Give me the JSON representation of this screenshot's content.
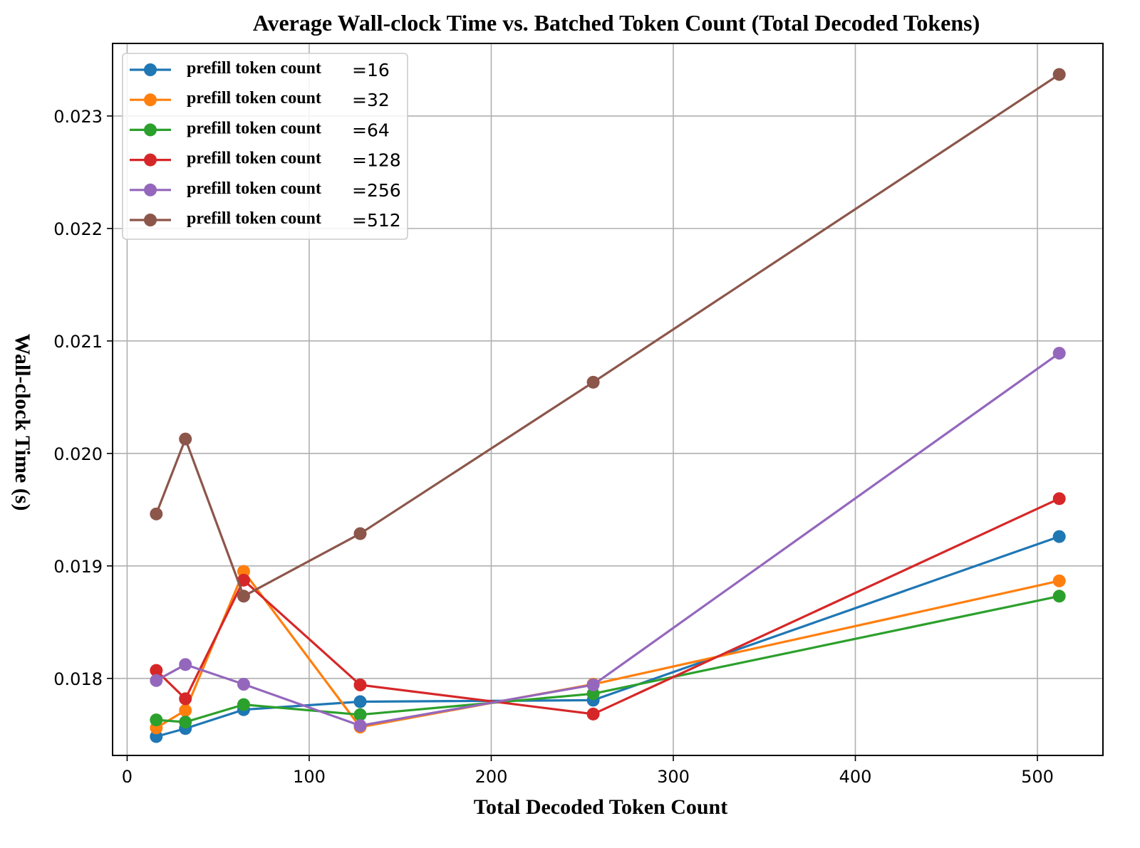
{
  "chart_data": {
    "type": "line",
    "title": "Average Wall-clock Time vs. Batched Token Count (Total Decoded Tokens)",
    "xlabel": "Total Decoded Token Count",
    "ylabel": "Wall-clock Time (s)",
    "xlim": [
      -8,
      536
    ],
    "ylim": [
      0.017315,
      0.023645
    ],
    "xticks": [
      0,
      100,
      200,
      300,
      400,
      500
    ],
    "xtick_labels": [
      "0",
      "100",
      "200",
      "300",
      "400",
      "500"
    ],
    "yticks": [
      0.018,
      0.019,
      0.02,
      0.021,
      0.022,
      0.023
    ],
    "ytick_labels": [
      "0.018",
      "0.019",
      "0.020",
      "0.021",
      "0.022",
      "0.023"
    ],
    "grid": true,
    "legend_position": "top-left",
    "x": [
      16,
      32,
      64,
      128,
      256,
      512
    ],
    "series": [
      {
        "name": "prefill token count =16",
        "label": "prefill token count",
        "suffix": "=16",
        "color": "#1f77b4",
        "values": [
          0.017483,
          0.017554,
          0.017722,
          0.017793,
          0.017806,
          0.019261
        ]
      },
      {
        "name": "prefill token count =32",
        "label": "prefill token count",
        "suffix": "=32",
        "color": "#ff7f0e",
        "values": [
          0.01756,
          0.017715,
          0.018951,
          0.017567,
          0.017948,
          0.018867
        ]
      },
      {
        "name": "prefill token count =64",
        "label": "prefill token count",
        "suffix": "=64",
        "color": "#2ca02c",
        "values": [
          0.017631,
          0.017612,
          0.017767,
          0.017677,
          0.017864,
          0.018731
        ]
      },
      {
        "name": "prefill token count =128",
        "label": "prefill token count",
        "suffix": "=128",
        "color": "#d62728",
        "values": [
          0.018071,
          0.017819,
          0.018873,
          0.017942,
          0.017683,
          0.019598
        ]
      },
      {
        "name": "prefill token count =256",
        "label": "prefill token count",
        "suffix": "=256",
        "color": "#9467bd",
        "values": [
          0.017981,
          0.018123,
          0.017948,
          0.01758,
          0.017942,
          0.020891
        ]
      },
      {
        "name": "prefill token count =512",
        "label": "prefill token count",
        "suffix": "=512",
        "color": "#8c564b",
        "values": [
          0.019462,
          0.020128,
          0.018731,
          0.019287,
          0.020633,
          0.023369
        ]
      }
    ]
  }
}
